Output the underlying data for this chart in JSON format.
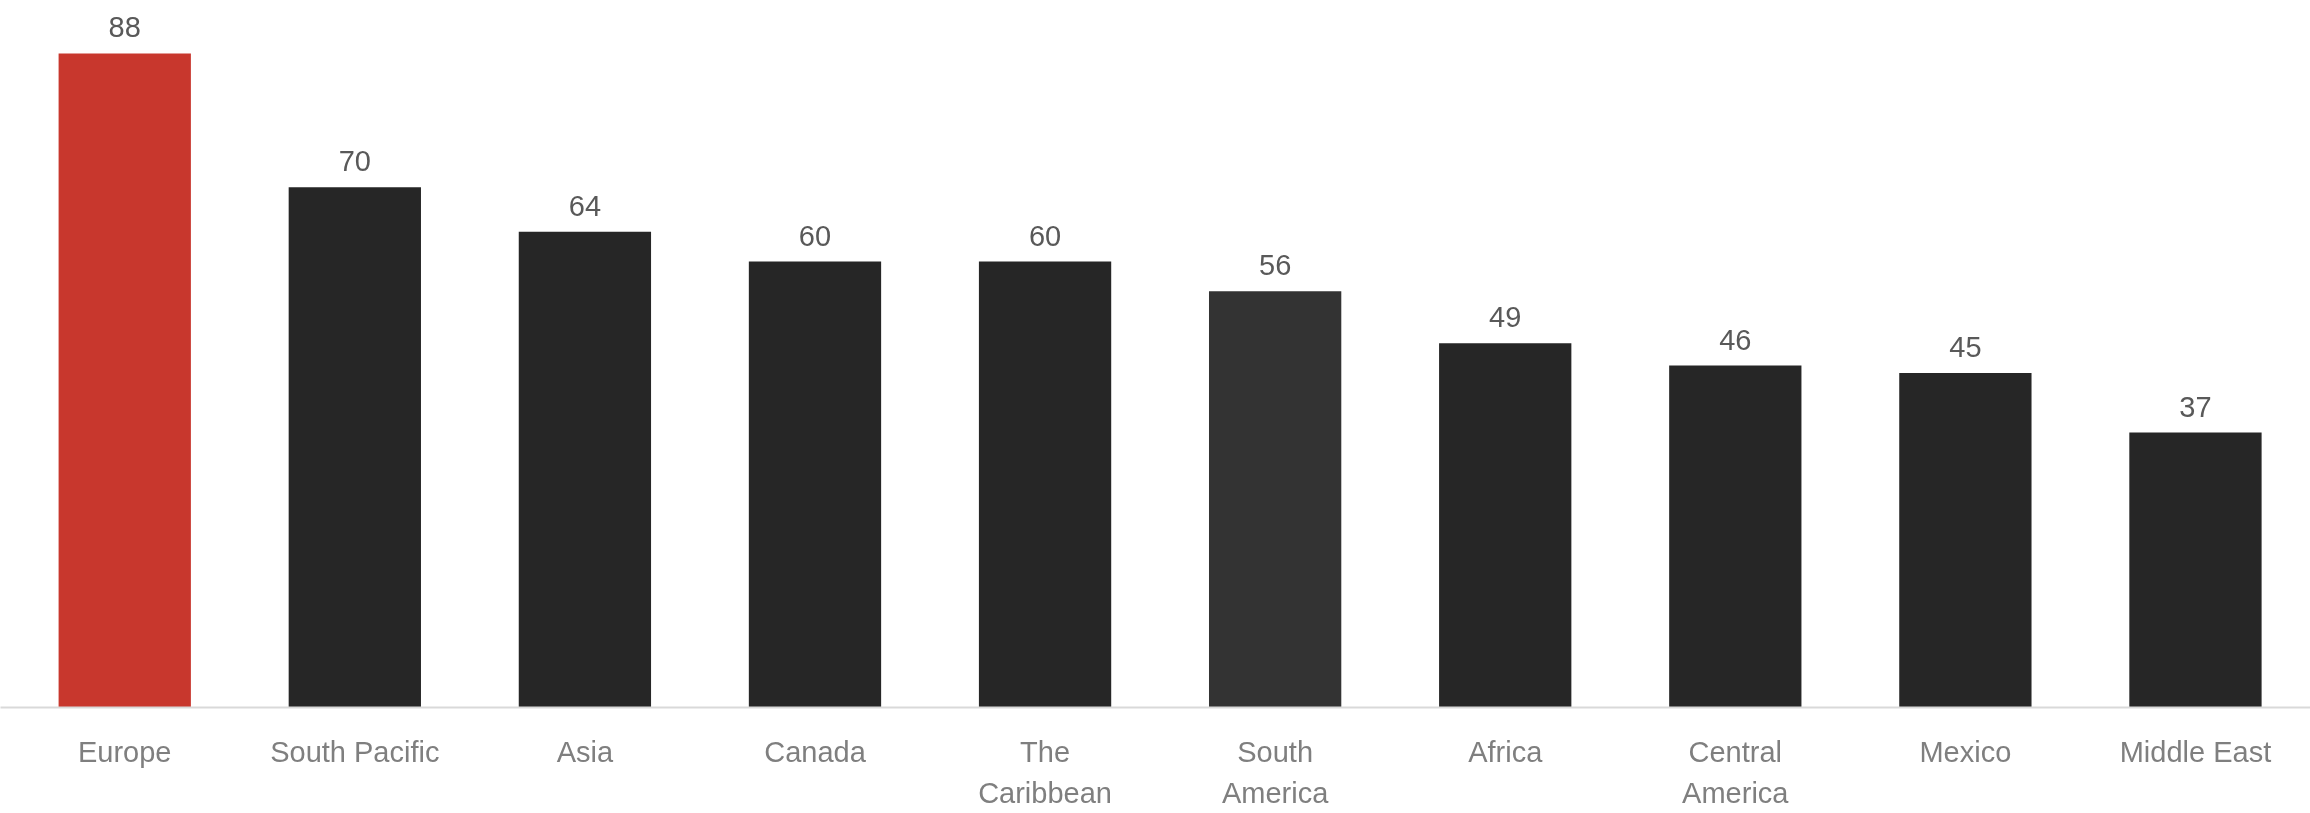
{
  "chart_data": {
    "type": "bar",
    "categories": [
      "Europe",
      "South Pacific",
      "Asia",
      "Canada",
      "The\nCaribbean",
      "South\nAmerica",
      "Africa",
      "Central\nAmerica",
      "Mexico",
      "Middle East"
    ],
    "values": [
      88,
      70,
      64,
      60,
      60,
      56,
      49,
      46,
      45,
      37
    ],
    "colors": [
      "#c8372d",
      "#262626",
      "#262626",
      "#262626",
      "#262626",
      "#333333",
      "#262626",
      "#262626",
      "#262626",
      "#262626"
    ],
    "data_labels": true,
    "tick_labels": "x",
    "grid": false
  }
}
